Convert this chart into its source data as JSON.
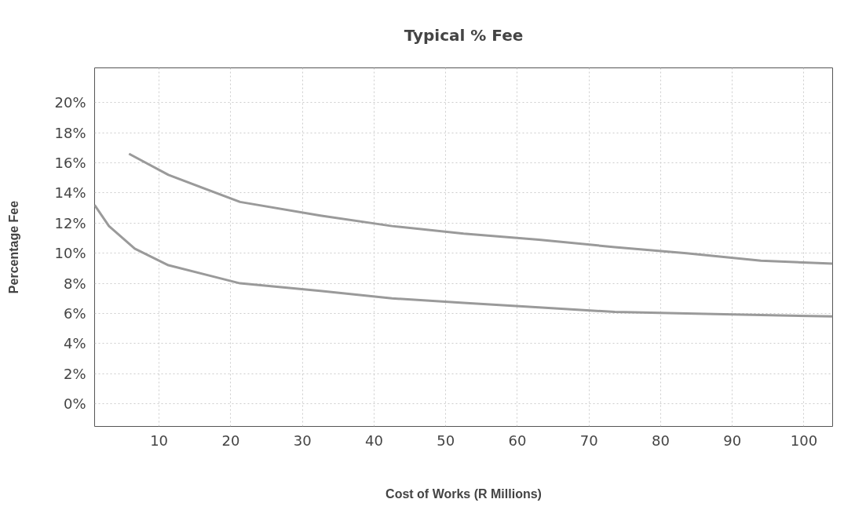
{
  "chart_data": {
    "type": "line",
    "title": "Typical % Fee",
    "xlabel": "Cost of Works (R Millions)",
    "ylabel": "Percentage Fee",
    "xlim": [
      1,
      104
    ],
    "ylim": [
      -1.5,
      22.3
    ],
    "xticks": [
      10,
      20,
      30,
      40,
      50,
      60,
      70,
      80,
      90,
      100
    ],
    "yticks": [
      {
        "value": 0,
        "label": "0%"
      },
      {
        "value": 2,
        "label": "2%"
      },
      {
        "value": 4,
        "label": "4%"
      },
      {
        "value": 6,
        "label": "6%"
      },
      {
        "value": 8,
        "label": "8%"
      },
      {
        "value": 10,
        "label": "10%"
      },
      {
        "value": 12,
        "label": "12%"
      },
      {
        "value": 14,
        "label": "14%"
      },
      {
        "value": 16,
        "label": "16%"
      },
      {
        "value": 18,
        "label": "18%"
      },
      {
        "value": 20,
        "label": "20%"
      }
    ],
    "grid": true,
    "marker": "none",
    "line_style": "solid",
    "series": [
      {
        "color": "#9a9a9a",
        "x": [
          5.8,
          11.3,
          21.3,
          32.5,
          42.5,
          52.5,
          63,
          73.6,
          83.6,
          94,
          104
        ],
        "values": [
          16.6,
          15.2,
          13.4,
          12.5,
          11.8,
          11.3,
          10.9,
          10.4,
          10.0,
          9.5,
          9.3
        ]
      },
      {
        "color": "#9a9a9a",
        "x": [
          1,
          3,
          6.6,
          11.3,
          21.3,
          32.5,
          42.5,
          52.5,
          63,
          73.6,
          83.6,
          94,
          104
        ],
        "values": [
          13.2,
          11.8,
          10.3,
          9.2,
          8.0,
          7.5,
          7.0,
          6.7,
          6.4,
          6.1,
          6.0,
          5.9,
          5.8
        ]
      }
    ]
  }
}
